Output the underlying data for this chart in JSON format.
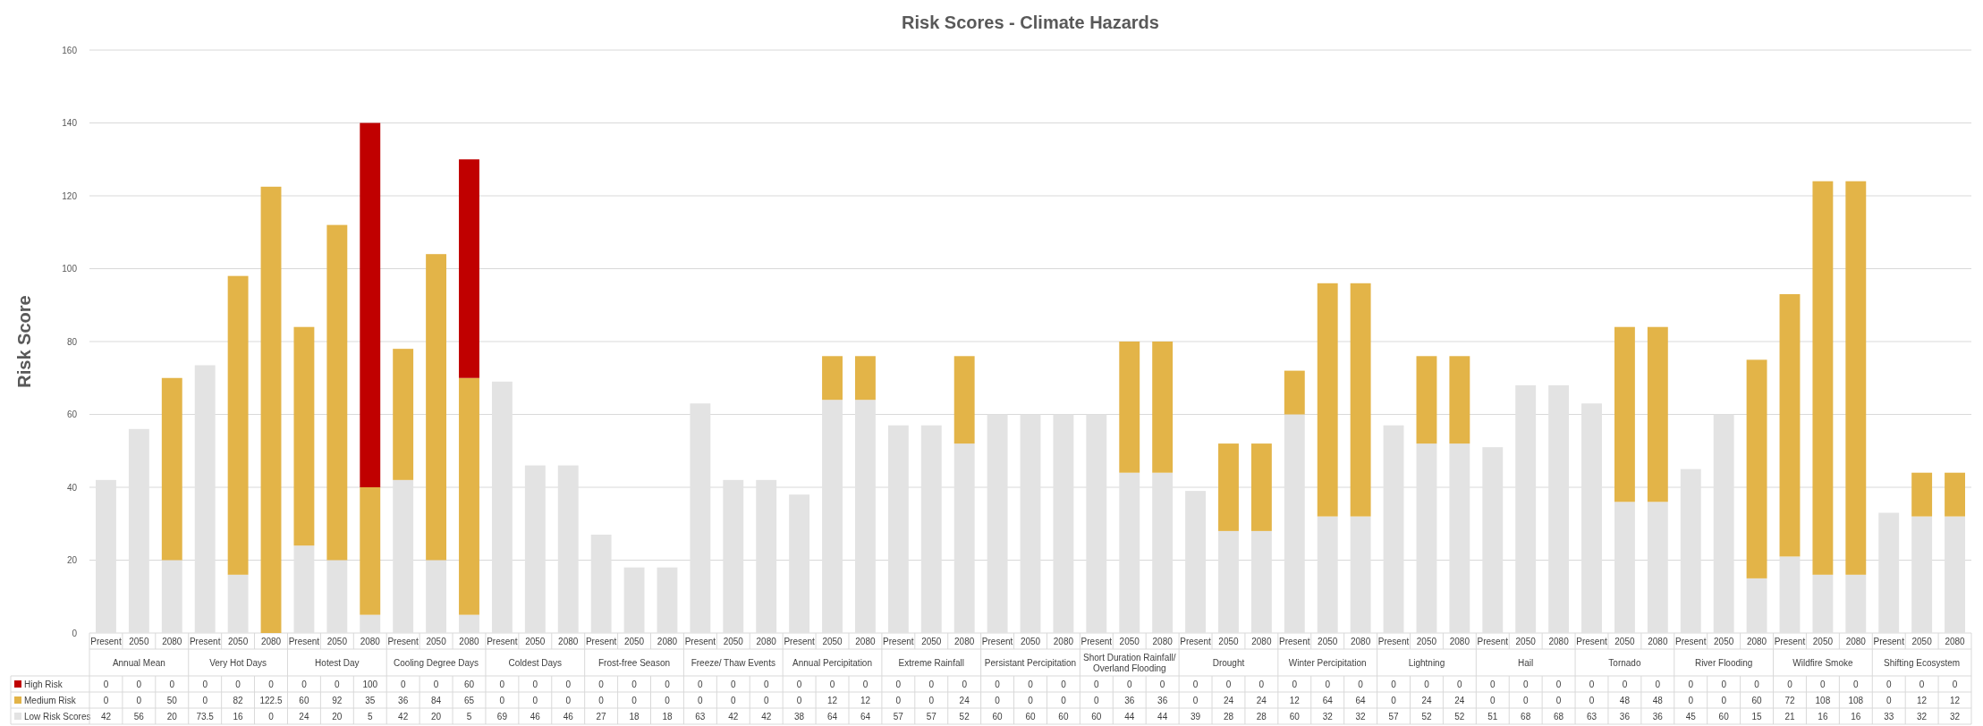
{
  "chart_data": {
    "type": "bar",
    "title": "Risk Scores - Climate Hazards",
    "ylabel": "Risk Score",
    "stacked": true,
    "ylim": [
      0,
      160
    ],
    "yticks": [
      0,
      20,
      40,
      60,
      80,
      100,
      120,
      140,
      160
    ],
    "grid": "y",
    "legend": "bottom left",
    "data_labels": true,
    "categories": [
      "Present",
      "2050",
      "2080",
      "Present",
      "2050",
      "2080",
      "Present",
      "2050",
      "2080",
      "Present",
      "2050",
      "2080",
      "Present",
      "2050",
      "2080",
      "Present",
      "2050",
      "2080",
      "Present",
      "2050",
      "2080",
      "Present",
      "2050",
      "2080",
      "Present",
      "2050",
      "2080",
      "Present",
      "2050",
      "2080",
      "Present",
      "2050",
      "2080",
      "Present",
      "2050",
      "2080",
      "Present",
      "2050",
      "2080",
      "Present",
      "2050",
      "2080",
      "Present",
      "2050",
      "2080",
      "Present",
      "2050",
      "2080",
      "Present",
      "2050",
      "2080",
      "Present",
      "2050",
      "2080",
      "Present",
      "2050",
      "2080"
    ],
    "annotations": [
      "Annual Mean",
      "Very Hot Days",
      "Hotest Day",
      "Cooling Degree Days",
      "Coldest Days",
      "Frost-free Season",
      "Freeze/ Thaw Events",
      "Annual Percipitation",
      "Extreme Rainfall",
      "Persistant Percipitation",
      "Short Duration Rainfall/ Overland Flooding",
      "Drought",
      "Winter Percipitation",
      "Lightning",
      "Hail",
      "Tornado",
      "River Flooding",
      "Wildfire  Smoke",
      "Shifting Ecosystem"
    ],
    "series": [
      {
        "name": "Low Risk Scores",
        "color": "#e3e3e3",
        "values": [
          42,
          56,
          20,
          73.5,
          16,
          0,
          24,
          20,
          5,
          42,
          20,
          5,
          69,
          46,
          46,
          27,
          18,
          18,
          63,
          42,
          42,
          38,
          64,
          64,
          57,
          57,
          52,
          60,
          60,
          60,
          60,
          44,
          44,
          39,
          28,
          28,
          60,
          32,
          32,
          57,
          52,
          52,
          51,
          68,
          68,
          63,
          36,
          36,
          45,
          60,
          15,
          21,
          16,
          16,
          33,
          32,
          32
        ]
      },
      {
        "name": "Medium Risk",
        "color": "#e3b448",
        "values": [
          0,
          0,
          50,
          0,
          82,
          122.5,
          60,
          92,
          35,
          36,
          84,
          65,
          0,
          0,
          0,
          0,
          0,
          0,
          0,
          0,
          0,
          0,
          12,
          12,
          0,
          0,
          24,
          0,
          0,
          0,
          0,
          36,
          36,
          0,
          24,
          24,
          12,
          64,
          64,
          0,
          24,
          24,
          0,
          0,
          0,
          0,
          48,
          48,
          0,
          0,
          60,
          72,
          108,
          108,
          0,
          12,
          12
        ]
      },
      {
        "name": "High Risk",
        "color": "#c00000",
        "values": [
          0,
          0,
          0,
          0,
          0,
          0,
          0,
          0,
          100,
          0,
          0,
          60,
          0,
          0,
          0,
          0,
          0,
          0,
          0,
          0,
          0,
          0,
          0,
          0,
          0,
          0,
          0,
          0,
          0,
          0,
          0,
          0,
          0,
          0,
          0,
          0,
          0,
          0,
          0,
          0,
          0,
          0,
          0,
          0,
          0,
          0,
          0,
          0,
          0,
          0,
          0,
          0,
          0,
          0,
          0,
          0,
          0
        ]
      }
    ]
  }
}
